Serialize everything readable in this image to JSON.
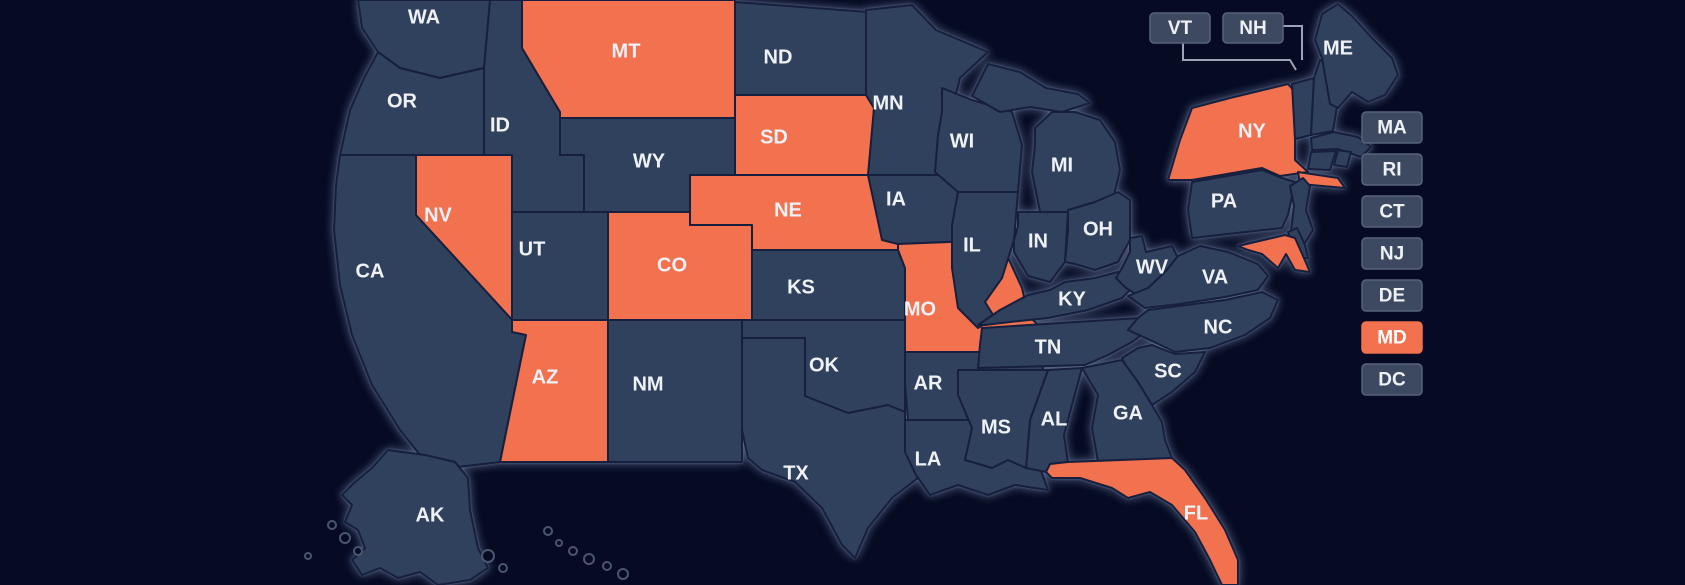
{
  "map": {
    "colors": {
      "background": "#060b23",
      "state_fill": "#30415d",
      "highlight_fill": "#f2714e",
      "border": "#161f3d",
      "label_text": "#eef1f6",
      "box_fill": "#3c4961",
      "box_border": "#566379",
      "box_text": "#eef1f6",
      "highlight_box_text": "#ffffff",
      "connector": "#9aa3b8"
    },
    "states": [
      {
        "id": "wa",
        "label": "WA",
        "highlighted": false
      },
      {
        "id": "or",
        "label": "OR",
        "highlighted": false
      },
      {
        "id": "ca",
        "label": "CA",
        "highlighted": false
      },
      {
        "id": "nv",
        "label": "NV",
        "highlighted": true
      },
      {
        "id": "id",
        "label": "ID",
        "highlighted": false
      },
      {
        "id": "ut",
        "label": "UT",
        "highlighted": false
      },
      {
        "id": "az",
        "label": "AZ",
        "highlighted": true
      },
      {
        "id": "mt",
        "label": "MT",
        "highlighted": true
      },
      {
        "id": "wy",
        "label": "WY",
        "highlighted": false
      },
      {
        "id": "co",
        "label": "CO",
        "highlighted": true
      },
      {
        "id": "nm",
        "label": "NM",
        "highlighted": false
      },
      {
        "id": "nd",
        "label": "ND",
        "highlighted": false
      },
      {
        "id": "sd",
        "label": "SD",
        "highlighted": true
      },
      {
        "id": "ne",
        "label": "NE",
        "highlighted": true
      },
      {
        "id": "ks",
        "label": "KS",
        "highlighted": false
      },
      {
        "id": "ok",
        "label": "OK",
        "highlighted": false
      },
      {
        "id": "tx",
        "label": "TX",
        "highlighted": false
      },
      {
        "id": "mn",
        "label": "MN",
        "highlighted": false
      },
      {
        "id": "ia",
        "label": "IA",
        "highlighted": false
      },
      {
        "id": "mo",
        "label": "MO",
        "highlighted": true
      },
      {
        "id": "ar",
        "label": "AR",
        "highlighted": false
      },
      {
        "id": "la",
        "label": "LA",
        "highlighted": false
      },
      {
        "id": "wi",
        "label": "WI",
        "highlighted": false
      },
      {
        "id": "il",
        "label": "IL",
        "highlighted": false
      },
      {
        "id": "mi_up",
        "label": "",
        "highlighted": false
      },
      {
        "id": "mi",
        "label": "MI",
        "highlighted": false
      },
      {
        "id": "in",
        "label": "IN",
        "highlighted": false
      },
      {
        "id": "oh",
        "label": "OH",
        "highlighted": false
      },
      {
        "id": "ky",
        "label": "KY",
        "highlighted": false
      },
      {
        "id": "tn",
        "label": "TN",
        "highlighted": false
      },
      {
        "id": "wv",
        "label": "WV",
        "highlighted": false
      },
      {
        "id": "va",
        "label": "VA",
        "highlighted": false
      },
      {
        "id": "nc",
        "label": "NC",
        "highlighted": false
      },
      {
        "id": "sc",
        "label": "SC",
        "highlighted": false
      },
      {
        "id": "ga",
        "label": "GA",
        "highlighted": false
      },
      {
        "id": "al",
        "label": "AL",
        "highlighted": false
      },
      {
        "id": "ms",
        "label": "MS",
        "highlighted": false
      },
      {
        "id": "fl",
        "label": "FL",
        "highlighted": true
      },
      {
        "id": "pa",
        "label": "PA",
        "highlighted": false
      },
      {
        "id": "ny",
        "label": "NY",
        "highlighted": true
      },
      {
        "id": "ny_li",
        "label": "",
        "highlighted": true
      },
      {
        "id": "nj",
        "label": "",
        "highlighted": false
      },
      {
        "id": "de_state",
        "label": "",
        "highlighted": false
      },
      {
        "id": "md_state",
        "label": "",
        "highlighted": true
      },
      {
        "id": "vt",
        "label": "",
        "highlighted": false
      },
      {
        "id": "nh",
        "label": "",
        "highlighted": false
      },
      {
        "id": "me",
        "label": "ME",
        "highlighted": false
      },
      {
        "id": "ma_state",
        "label": "",
        "highlighted": false
      },
      {
        "id": "ct_state",
        "label": "",
        "highlighted": false
      },
      {
        "id": "ri_state",
        "label": "",
        "highlighted": false
      },
      {
        "id": "ak",
        "label": "AK",
        "highlighted": false
      }
    ],
    "top_callouts": [
      {
        "id": "vt",
        "label": "VT",
        "highlighted": false
      },
      {
        "id": "nh",
        "label": "NH",
        "highlighted": false
      }
    ],
    "right_callouts": [
      {
        "id": "ma",
        "label": "MA",
        "highlighted": false
      },
      {
        "id": "ri",
        "label": "RI",
        "highlighted": false
      },
      {
        "id": "ct",
        "label": "CT",
        "highlighted": false
      },
      {
        "id": "nj",
        "label": "NJ",
        "highlighted": false
      },
      {
        "id": "de",
        "label": "DE",
        "highlighted": false
      },
      {
        "id": "md",
        "label": "MD",
        "highlighted": true
      },
      {
        "id": "dc",
        "label": "DC",
        "highlighted": false
      }
    ]
  }
}
